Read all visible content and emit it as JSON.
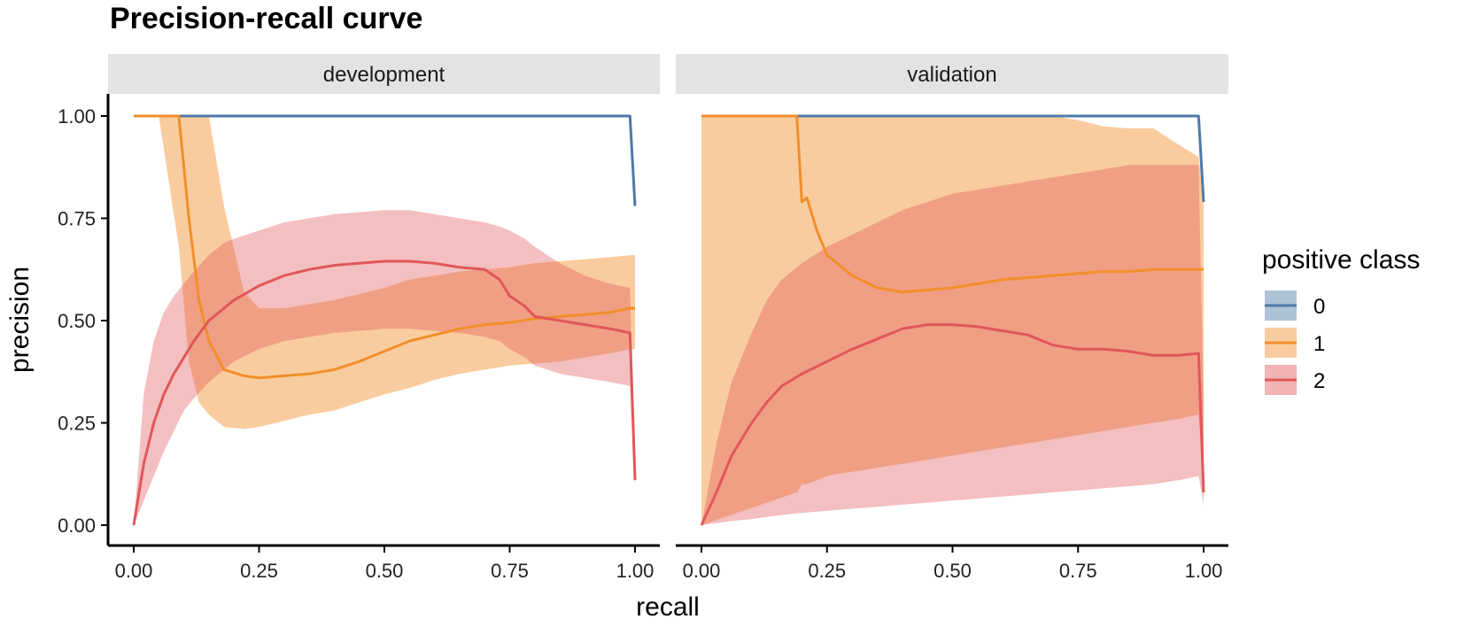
{
  "chart_data": {
    "type": "line",
    "title": "Precision-recall curve",
    "xlabel": "recall",
    "ylabel": "precision",
    "xlim": [
      0,
      1
    ],
    "ylim": [
      0,
      1
    ],
    "x_ticks": [
      "0.00",
      "0.25",
      "0.50",
      "0.75",
      "1.00"
    ],
    "y_ticks": [
      "0.00",
      "0.25",
      "0.50",
      "0.75",
      "1.00"
    ],
    "legend": {
      "title": "positive class",
      "position": "right",
      "items": [
        {
          "label": "0",
          "color": "#4E79A7"
        },
        {
          "label": "1",
          "color": "#F28E2B"
        },
        {
          "label": "2",
          "color": "#E15759"
        }
      ]
    },
    "panels": [
      {
        "name": "development",
        "series": [
          {
            "class": "0",
            "color": "#4E79A7",
            "x": [
              0,
              0.99,
              1.0
            ],
            "y": [
              1.0,
              1.0,
              0.78
            ],
            "lower": [
              1.0,
              1.0,
              0.78
            ],
            "upper": [
              1.0,
              1.0,
              0.78
            ]
          },
          {
            "class": "1",
            "color": "#F28E2B",
            "x": [
              0,
              0.05,
              0.09,
              0.11,
              0.13,
              0.15,
              0.18,
              0.22,
              0.25,
              0.3,
              0.35,
              0.4,
              0.45,
              0.5,
              0.55,
              0.6,
              0.65,
              0.7,
              0.75,
              0.8,
              0.85,
              0.9,
              0.95,
              0.99,
              1.0
            ],
            "y": [
              1.0,
              1.0,
              1.0,
              0.75,
              0.55,
              0.45,
              0.38,
              0.365,
              0.36,
              0.365,
              0.37,
              0.38,
              0.4,
              0.425,
              0.45,
              0.465,
              0.48,
              0.49,
              0.495,
              0.505,
              0.51,
              0.515,
              0.52,
              0.53,
              0.53
            ],
            "lower": [
              1.0,
              1.0,
              0.68,
              0.4,
              0.3,
              0.27,
              0.24,
              0.235,
              0.24,
              0.255,
              0.27,
              0.28,
              0.3,
              0.32,
              0.335,
              0.355,
              0.37,
              0.38,
              0.39,
              0.395,
              0.4,
              0.41,
              0.42,
              0.43,
              0.43
            ],
            "upper": [
              1.0,
              1.0,
              1.0,
              1.0,
              1.0,
              1.0,
              0.78,
              0.57,
              0.53,
              0.53,
              0.54,
              0.55,
              0.565,
              0.58,
              0.6,
              0.61,
              0.62,
              0.625,
              0.63,
              0.64,
              0.645,
              0.65,
              0.655,
              0.66,
              0.66
            ]
          },
          {
            "class": "2",
            "color": "#E15759",
            "x": [
              0,
              0.02,
              0.04,
              0.06,
              0.08,
              0.1,
              0.12,
              0.15,
              0.18,
              0.2,
              0.25,
              0.3,
              0.35,
              0.4,
              0.45,
              0.5,
              0.55,
              0.6,
              0.65,
              0.7,
              0.73,
              0.75,
              0.78,
              0.8,
              0.85,
              0.9,
              0.95,
              0.99,
              1.0
            ],
            "y": [
              0.0,
              0.15,
              0.25,
              0.32,
              0.37,
              0.41,
              0.45,
              0.5,
              0.53,
              0.55,
              0.585,
              0.61,
              0.625,
              0.635,
              0.64,
              0.645,
              0.645,
              0.64,
              0.63,
              0.625,
              0.6,
              0.56,
              0.535,
              0.51,
              0.5,
              0.49,
              0.48,
              0.47,
              0.11
            ],
            "lower": [
              0.0,
              0.06,
              0.12,
              0.18,
              0.23,
              0.28,
              0.31,
              0.35,
              0.38,
              0.4,
              0.43,
              0.45,
              0.46,
              0.47,
              0.475,
              0.48,
              0.48,
              0.475,
              0.47,
              0.46,
              0.45,
              0.43,
              0.41,
              0.39,
              0.37,
              0.36,
              0.35,
              0.34,
              0.1
            ],
            "upper": [
              0.0,
              0.32,
              0.45,
              0.52,
              0.56,
              0.59,
              0.62,
              0.66,
              0.69,
              0.7,
              0.72,
              0.74,
              0.75,
              0.76,
              0.765,
              0.77,
              0.77,
              0.76,
              0.75,
              0.74,
              0.73,
              0.72,
              0.7,
              0.68,
              0.64,
              0.61,
              0.59,
              0.58,
              0.12
            ]
          }
        ]
      },
      {
        "name": "validation",
        "series": [
          {
            "class": "0",
            "color": "#4E79A7",
            "x": [
              0,
              0.99,
              1.0
            ],
            "y": [
              1.0,
              1.0,
              0.79
            ],
            "lower": [
              1.0,
              1.0,
              0.79
            ],
            "upper": [
              1.0,
              1.0,
              0.79
            ]
          },
          {
            "class": "1",
            "color": "#F28E2B",
            "x": [
              0,
              0.19,
              0.2,
              0.21,
              0.23,
              0.25,
              0.27,
              0.3,
              0.35,
              0.4,
              0.45,
              0.5,
              0.55,
              0.6,
              0.65,
              0.7,
              0.75,
              0.8,
              0.85,
              0.9,
              0.95,
              0.99,
              1.0
            ],
            "y": [
              1.0,
              1.0,
              0.79,
              0.8,
              0.72,
              0.66,
              0.64,
              0.61,
              0.58,
              0.57,
              0.575,
              0.58,
              0.59,
              0.6,
              0.605,
              0.61,
              0.615,
              0.62,
              0.62,
              0.625,
              0.625,
              0.625,
              0.625
            ],
            "lower": [
              0.0,
              0.08,
              0.1,
              0.1,
              0.11,
              0.12,
              0.125,
              0.13,
              0.14,
              0.15,
              0.16,
              0.17,
              0.18,
              0.19,
              0.2,
              0.21,
              0.22,
              0.23,
              0.24,
              0.25,
              0.26,
              0.27,
              0.1
            ],
            "upper": [
              1.0,
              1.0,
              1.0,
              1.0,
              1.0,
              1.0,
              1.0,
              1.0,
              1.0,
              1.0,
              1.0,
              1.0,
              1.0,
              1.0,
              1.0,
              1.0,
              0.99,
              0.975,
              0.97,
              0.97,
              0.93,
              0.9,
              0.8
            ]
          },
          {
            "class": "2",
            "color": "#E15759",
            "x": [
              0,
              0.03,
              0.06,
              0.1,
              0.13,
              0.16,
              0.2,
              0.25,
              0.3,
              0.35,
              0.4,
              0.45,
              0.5,
              0.55,
              0.6,
              0.65,
              0.7,
              0.75,
              0.8,
              0.85,
              0.9,
              0.95,
              0.99,
              1.0
            ],
            "y": [
              0.0,
              0.08,
              0.17,
              0.25,
              0.3,
              0.34,
              0.37,
              0.4,
              0.43,
              0.455,
              0.48,
              0.49,
              0.49,
              0.485,
              0.475,
              0.465,
              0.44,
              0.43,
              0.43,
              0.425,
              0.415,
              0.415,
              0.42,
              0.08
            ],
            "lower": [
              0.0,
              0.005,
              0.01,
              0.015,
              0.02,
              0.025,
              0.03,
              0.035,
              0.04,
              0.045,
              0.05,
              0.055,
              0.06,
              0.065,
              0.07,
              0.075,
              0.08,
              0.085,
              0.09,
              0.095,
              0.1,
              0.11,
              0.12,
              0.05
            ],
            "upper": [
              0.0,
              0.2,
              0.35,
              0.47,
              0.55,
              0.6,
              0.64,
              0.68,
              0.71,
              0.74,
              0.77,
              0.79,
              0.81,
              0.82,
              0.83,
              0.84,
              0.85,
              0.86,
              0.87,
              0.88,
              0.88,
              0.88,
              0.88,
              0.3
            ]
          }
        ]
      }
    ]
  }
}
